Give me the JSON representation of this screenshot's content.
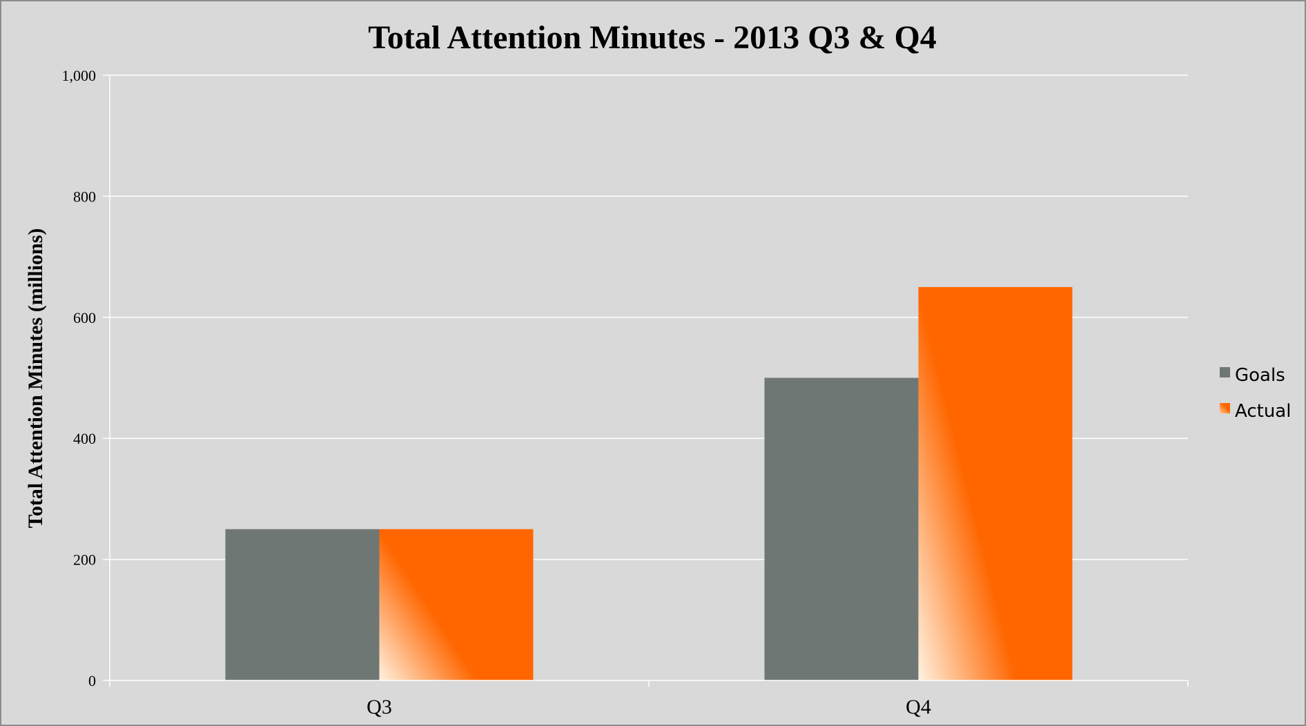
{
  "chart_data": {
    "type": "bar",
    "title": "Total Attention Minutes - 2013 Q3 & Q4",
    "xlabel": "",
    "ylabel": "Total Attention Minutes (millions)",
    "categories": [
      "Q3",
      "Q4"
    ],
    "series": [
      {
        "name": "Goals",
        "values": [
          250,
          500
        ],
        "color": "#6f7774"
      },
      {
        "name": "Actual",
        "values": [
          250,
          650
        ],
        "color": "#ff6600"
      }
    ],
    "ylim": [
      0,
      1000
    ],
    "yticks": [
      0,
      200,
      400,
      600,
      800,
      1000
    ],
    "ytick_labels": [
      "0",
      "200",
      "400",
      "600",
      "800",
      "1,000"
    ],
    "grid": true,
    "legend_position": "right",
    "background_color": "#d9d9d9",
    "gridline_color": "#ffffff"
  }
}
